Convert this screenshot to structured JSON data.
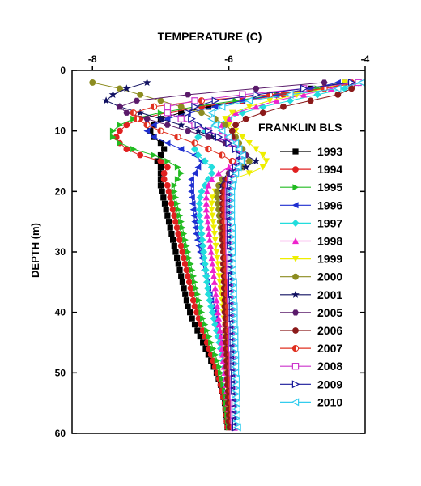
{
  "chart_data": {
    "type": "line",
    "title": "TEMPERATURE (C)",
    "xlabel": "TEMPERATURE (C)",
    "ylabel": "DEPTH (m)",
    "xlim": [
      -8.3,
      -4.0
    ],
    "ylim": [
      60,
      0
    ],
    "x_axis_position": "top",
    "y_inverted": true,
    "x_ticks": [
      "-8",
      "-6",
      "-4"
    ],
    "x_tick_values": [
      -8,
      -6,
      -4
    ],
    "y_ticks": [
      "0",
      "10",
      "20",
      "30",
      "40",
      "50",
      "60"
    ],
    "y_tick_values": [
      0,
      10,
      20,
      30,
      40,
      50,
      60
    ],
    "grid": false,
    "legend": {
      "title": "FRANKLIN BLS",
      "placement": "right-inside"
    },
    "depths": [
      2,
      3,
      4,
      5,
      6,
      7,
      8,
      9,
      10,
      11,
      12,
      13,
      14,
      15,
      16,
      17,
      18,
      19,
      20,
      21,
      22,
      23,
      24,
      25,
      26,
      27,
      28,
      29,
      30,
      31,
      32,
      33,
      34,
      35,
      36,
      37,
      38,
      39,
      40,
      41,
      42,
      43,
      44,
      45,
      46,
      47,
      48,
      49,
      50,
      51,
      52,
      53,
      54,
      55,
      56,
      57,
      58,
      59
    ],
    "series": [
      {
        "name": "1993",
        "color": "#000000",
        "marker": "square",
        "values": [
          -4.3,
          -4.8,
          -5.3,
          -5.8,
          -6.3,
          -6.7,
          -7.0,
          -7.1,
          -7.15,
          -7.1,
          -7.0,
          -6.95,
          -7.0,
          -7.05,
          -7.0,
          -7.0,
          -7.0,
          -7.0,
          -6.98,
          -6.96,
          -6.94,
          -6.92,
          -6.9,
          -6.88,
          -6.86,
          -6.84,
          -6.82,
          -6.8,
          -6.78,
          -6.76,
          -6.74,
          -6.72,
          -6.7,
          -6.68,
          -6.66,
          -6.64,
          -6.62,
          -6.6,
          -6.57,
          -6.54,
          -6.5,
          -6.46,
          -6.42,
          -6.38,
          -6.34,
          -6.3,
          -6.26,
          -6.22,
          -6.18,
          -6.15,
          -6.12,
          -6.1,
          -6.08,
          -6.06,
          -6.05,
          -6.04,
          -6.03,
          -6.02
        ]
      },
      {
        "name": "1994",
        "color": "#e02020",
        "marker": "circle",
        "values": [
          -4.2,
          -4.6,
          -5.2,
          -5.8,
          -6.4,
          -6.9,
          -7.3,
          -7.5,
          -7.6,
          -7.65,
          -7.6,
          -7.5,
          -7.3,
          -7.0,
          -6.9,
          -6.95,
          -6.95,
          -6.9,
          -6.88,
          -6.86,
          -6.84,
          -6.82,
          -6.8,
          -6.78,
          -6.76,
          -6.74,
          -6.72,
          -6.7,
          -6.68,
          -6.66,
          -6.64,
          -6.62,
          -6.6,
          -6.58,
          -6.56,
          -6.54,
          -6.52,
          -6.5,
          -6.47,
          -6.44,
          -6.41,
          -6.38,
          -6.35,
          -6.32,
          -6.29,
          -6.26,
          -6.23,
          -6.2,
          -6.17,
          -6.14,
          -6.12,
          -6.1,
          -6.08,
          -6.06,
          -6.05,
          -6.04,
          -6.03,
          -6.02
        ]
      },
      {
        "name": "1995",
        "color": "#22bb22",
        "marker": "triangle-right",
        "values": [
          -4.3,
          -4.7,
          -5.3,
          -5.9,
          -6.5,
          -7.0,
          -7.4,
          -7.6,
          -7.7,
          -7.7,
          -7.6,
          -7.4,
          -7.1,
          -6.9,
          -6.75,
          -6.7,
          -6.75,
          -6.8,
          -6.8,
          -6.78,
          -6.76,
          -6.74,
          -6.72,
          -6.7,
          -6.68,
          -6.66,
          -6.64,
          -6.62,
          -6.6,
          -6.58,
          -6.56,
          -6.54,
          -6.52,
          -6.5,
          -6.48,
          -6.46,
          -6.44,
          -6.42,
          -6.4,
          -6.38,
          -6.35,
          -6.32,
          -6.29,
          -6.26,
          -6.23,
          -6.2,
          -6.17,
          -6.14,
          -6.12,
          -6.1,
          -6.08,
          -6.06,
          -6.05,
          -6.04,
          -6.03,
          -6.02,
          -6.01,
          -6.0
        ]
      },
      {
        "name": "1996",
        "color": "#1f2fd0",
        "marker": "triangle-left",
        "values": [
          -4.4,
          -4.8,
          -5.3,
          -5.8,
          -6.2,
          -6.6,
          -6.9,
          -7.1,
          -7.2,
          -7.1,
          -6.9,
          -6.7,
          -6.5,
          -6.4,
          -6.45,
          -6.5,
          -6.55,
          -6.55,
          -6.55,
          -6.54,
          -6.53,
          -6.52,
          -6.51,
          -6.5,
          -6.49,
          -6.48,
          -6.46,
          -6.44,
          -6.42,
          -6.4,
          -6.38,
          -6.36,
          -6.34,
          -6.32,
          -6.3,
          -6.28,
          -6.26,
          -6.24,
          -6.22,
          -6.2,
          -6.18,
          -6.16,
          -6.14,
          -6.12,
          -6.1,
          -6.09,
          -6.08,
          -6.07,
          -6.06,
          -6.05,
          -6.04,
          -6.03,
          -6.02,
          -6.01,
          -6.0,
          -5.99,
          -5.98,
          -5.97
        ]
      },
      {
        "name": "1997",
        "color": "#22dddd",
        "marker": "diamond",
        "values": [
          -4.1,
          -4.3,
          -4.7,
          -5.1,
          -5.5,
          -5.8,
          -6.0,
          -6.2,
          -6.35,
          -6.45,
          -6.5,
          -6.5,
          -6.45,
          -6.35,
          -6.25,
          -6.25,
          -6.3,
          -6.35,
          -6.4,
          -6.42,
          -6.43,
          -6.43,
          -6.43,
          -6.42,
          -6.41,
          -6.4,
          -6.39,
          -6.38,
          -6.37,
          -6.36,
          -6.35,
          -6.34,
          -6.33,
          -6.32,
          -6.31,
          -6.3,
          -6.28,
          -6.26,
          -6.24,
          -6.22,
          -6.2,
          -6.18,
          -6.16,
          -6.14,
          -6.12,
          -6.1,
          -6.08,
          -6.06,
          -6.05,
          -6.04,
          -6.03,
          -6.02,
          -6.01,
          -6.0,
          -5.99,
          -5.98,
          -5.97,
          -5.96
        ]
      },
      {
        "name": "1998",
        "color": "#ee22cc",
        "marker": "triangle-up",
        "values": [
          -4.2,
          -4.5,
          -4.9,
          -5.3,
          -5.6,
          -5.9,
          -6.0,
          -6.1,
          -6.1,
          -6.05,
          -6.0,
          -5.9,
          -5.85,
          -5.9,
          -6.0,
          -6.15,
          -6.25,
          -6.3,
          -6.32,
          -6.33,
          -6.33,
          -6.33,
          -6.32,
          -6.31,
          -6.3,
          -6.29,
          -6.28,
          -6.27,
          -6.26,
          -6.25,
          -6.24,
          -6.23,
          -6.22,
          -6.21,
          -6.2,
          -6.19,
          -6.18,
          -6.17,
          -6.16,
          -6.15,
          -6.14,
          -6.13,
          -6.12,
          -6.11,
          -6.1,
          -6.09,
          -6.08,
          -6.07,
          -6.06,
          -6.05,
          -6.04,
          -6.03,
          -6.02,
          -6.01,
          -6.0,
          -5.99,
          -5.98,
          -5.97
        ]
      },
      {
        "name": "1999",
        "color": "#eeee00",
        "marker": "triangle-down",
        "values": [
          -4.3,
          -4.6,
          -5.0,
          -5.4,
          -5.7,
          -5.95,
          -6.05,
          -6.0,
          -5.9,
          -5.8,
          -5.7,
          -5.6,
          -5.5,
          -5.45,
          -5.5,
          -5.7,
          -5.95,
          -6.1,
          -6.2,
          -6.24,
          -6.25,
          -6.25,
          -6.24,
          -6.23,
          -6.22,
          -6.21,
          -6.2,
          -6.19,
          -6.18,
          -6.17,
          -6.16,
          -6.15,
          -6.14,
          -6.13,
          -6.12,
          -6.11,
          -6.1,
          -6.09,
          -6.08,
          -6.07,
          -6.06,
          -6.05,
          -6.05,
          -6.04,
          -6.04,
          -6.03,
          -6.03,
          -6.02,
          -6.02,
          -6.01,
          -6.01,
          -6.0,
          -6.0,
          -5.99,
          -5.99,
          -5.98,
          -5.98,
          -5.97
        ]
      },
      {
        "name": "2000",
        "color": "#8c8c20",
        "marker": "circle",
        "values": [
          -8.0,
          -7.6,
          -7.3,
          -7.0,
          -6.7,
          -6.4,
          -6.2,
          -6.05,
          -5.95,
          -5.9,
          -5.85,
          -5.8,
          -5.75,
          -5.7,
          -5.8,
          -6.0,
          -6.1,
          -6.15,
          -6.17,
          -6.17,
          -6.16,
          -6.15,
          -6.14,
          -6.13,
          -6.12,
          -6.11,
          -6.1,
          -6.09,
          -6.08,
          -6.07,
          -6.06,
          -6.05,
          -6.05,
          -6.04,
          -6.04,
          -6.03,
          -6.03,
          -6.02,
          -6.02,
          -6.01,
          -6.01,
          -6.0,
          -6.0,
          -6.0,
          -5.99,
          -5.99,
          -5.99,
          -5.98,
          -5.98,
          -5.98,
          -5.97,
          -5.97,
          -5.97,
          -5.96,
          -5.96,
          -5.96,
          -5.95,
          -5.95
        ]
      },
      {
        "name": "2001",
        "color": "#101060",
        "marker": "star",
        "values": [
          -7.2,
          -7.5,
          -7.7,
          -7.8,
          -7.6,
          -7.3,
          -7.0,
          -6.7,
          -6.45,
          -6.25,
          -6.05,
          -5.9,
          -5.75,
          -5.6,
          -5.75,
          -5.95,
          -6.05,
          -6.1,
          -6.1,
          -6.1,
          -6.09,
          -6.08,
          -6.07,
          -6.06,
          -6.05,
          -6.05,
          -6.04,
          -6.04,
          -6.03,
          -6.03,
          -6.02,
          -6.02,
          -6.01,
          -6.01,
          -6.0,
          -6.0,
          -6.0,
          -5.99,
          -5.99,
          -5.99,
          -5.98,
          -5.98,
          -5.98,
          -5.97,
          -5.97,
          -5.97,
          -5.96,
          -5.96,
          -5.96,
          -5.95,
          -5.95,
          -5.95,
          -5.94,
          -5.94,
          -5.94,
          -5.93,
          -5.93,
          -5.93
        ]
      },
      {
        "name": "2005",
        "color": "#5a1a6a",
        "marker": "hexagon",
        "values": [
          -4.6,
          -5.6,
          -6.6,
          -7.35,
          -7.6,
          -7.5,
          -7.2,
          -6.9,
          -6.6,
          -6.3,
          -6.05,
          -5.85,
          -5.75,
          -5.8,
          -5.9,
          -6.0,
          -6.05,
          -6.07,
          -6.07,
          -6.07,
          -6.06,
          -6.06,
          -6.05,
          -6.05,
          -6.04,
          -6.04,
          -6.03,
          -6.03,
          -6.02,
          -6.02,
          -6.01,
          -6.01,
          -6.01,
          -6.0,
          -6.0,
          -6.0,
          -5.99,
          -5.99,
          -5.99,
          -5.98,
          -5.98,
          -5.98,
          -5.98,
          -5.97,
          -5.97,
          -5.97,
          -5.97,
          -5.96,
          -5.96,
          -5.96,
          -5.96,
          -5.95,
          -5.95,
          -5.95,
          -5.95,
          -5.94,
          -5.94,
          -5.94
        ]
      },
      {
        "name": "2006",
        "color": "#8b1a1a",
        "marker": "circle",
        "values": [
          -4.1,
          -4.2,
          -4.4,
          -4.8,
          -5.2,
          -5.5,
          -5.75,
          -5.9,
          -5.95,
          -5.95,
          -5.9,
          -5.85,
          -5.8,
          -5.8,
          -5.85,
          -5.95,
          -6.02,
          -6.06,
          -6.08,
          -6.09,
          -6.09,
          -6.09,
          -6.09,
          -6.09,
          -6.09,
          -6.09,
          -6.09,
          -6.09,
          -6.08,
          -6.08,
          -6.08,
          -6.08,
          -6.07,
          -6.07,
          -6.07,
          -6.07,
          -6.06,
          -6.06,
          -6.06,
          -6.05,
          -6.05,
          -6.05,
          -6.04,
          -6.04,
          -6.04,
          -6.03,
          -6.03,
          -6.03,
          -6.02,
          -6.02,
          -6.02,
          -6.01,
          -6.01,
          -6.01,
          -6.0,
          -6.0,
          -6.0,
          -5.99
        ]
      },
      {
        "name": "2007",
        "color": "#e03020",
        "marker": "half-circle",
        "values": [
          -4.1,
          -4.6,
          -5.4,
          -6.4,
          -7.1,
          -7.4,
          -7.35,
          -7.2,
          -7.0,
          -6.75,
          -6.5,
          -6.3,
          -6.1,
          -5.95,
          -5.9,
          -5.95,
          -6.0,
          -6.03,
          -6.05,
          -6.06,
          -6.06,
          -6.06,
          -6.06,
          -6.06,
          -6.05,
          -6.05,
          -6.05,
          -6.04,
          -6.04,
          -6.04,
          -6.03,
          -6.03,
          -6.03,
          -6.02,
          -6.02,
          -6.02,
          -6.01,
          -6.01,
          -6.01,
          -6.0,
          -6.0,
          -6.0,
          -5.99,
          -5.99,
          -5.99,
          -5.98,
          -5.98,
          -5.98,
          -5.97,
          -5.97,
          -5.97,
          -5.96,
          -5.96,
          -5.96,
          -5.95,
          -5.95,
          -5.95,
          -5.94
        ]
      },
      {
        "name": "2008",
        "color": "#cc33cc",
        "marker": "open-square",
        "values": [
          -4.1,
          -4.9,
          -5.8,
          -6.5,
          -6.9,
          -6.9,
          -6.7,
          -6.5,
          -6.3,
          -6.1,
          -5.95,
          -5.85,
          -5.8,
          -5.85,
          -5.9,
          -5.95,
          -5.98,
          -6.0,
          -6.01,
          -6.01,
          -6.01,
          -6.01,
          -6.01,
          -6.0,
          -6.0,
          -6.0,
          -6.0,
          -6.0,
          -6.0,
          -5.99,
          -5.99,
          -5.99,
          -5.99,
          -5.98,
          -5.98,
          -5.98,
          -5.98,
          -5.97,
          -5.97,
          -5.97,
          -5.97,
          -5.96,
          -5.96,
          -5.96,
          -5.96,
          -5.95,
          -5.95,
          -5.95,
          -5.95,
          -5.94,
          -5.94,
          -5.94,
          -5.94,
          -5.93,
          -5.93,
          -5.93,
          -5.93,
          -5.92
        ]
      },
      {
        "name": "2009",
        "color": "#1a1a9a",
        "marker": "open-triangle-right",
        "values": [
          -4.2,
          -4.9,
          -5.6,
          -6.2,
          -6.5,
          -6.6,
          -6.55,
          -6.45,
          -6.3,
          -6.15,
          -6.0,
          -5.9,
          -5.85,
          -5.85,
          -5.9,
          -5.95,
          -5.97,
          -5.98,
          -5.99,
          -5.99,
          -5.99,
          -5.99,
          -5.99,
          -5.98,
          -5.98,
          -5.98,
          -5.98,
          -5.98,
          -5.97,
          -5.97,
          -5.97,
          -5.97,
          -5.96,
          -5.96,
          -5.96,
          -5.96,
          -5.95,
          -5.95,
          -5.95,
          -5.95,
          -5.94,
          -5.94,
          -5.94,
          -5.94,
          -5.93,
          -5.93,
          -5.93,
          -5.93,
          -5.92,
          -5.92,
          -5.92,
          -5.92,
          -5.91,
          -5.91,
          -5.91,
          -5.91,
          -5.9,
          -5.9
        ]
      },
      {
        "name": "2010",
        "color": "#33ccee",
        "marker": "open-triangle-left",
        "values": [
          -4.05,
          -4.4,
          -5.1,
          -5.7,
          -6.1,
          -6.25,
          -6.25,
          -6.2,
          -6.1,
          -6.0,
          -5.9,
          -5.85,
          -5.8,
          -5.82,
          -5.86,
          -5.9,
          -5.93,
          -5.95,
          -5.96,
          -5.96,
          -5.96,
          -5.96,
          -5.96,
          -5.96,
          -5.95,
          -5.95,
          -5.95,
          -5.95,
          -5.95,
          -5.94,
          -5.94,
          -5.94,
          -5.94,
          -5.93,
          -5.93,
          -5.93,
          -5.93,
          -5.92,
          -5.92,
          -5.92,
          -5.92,
          -5.91,
          -5.91,
          -5.91,
          -5.91,
          -5.9,
          -5.9,
          -5.9,
          -5.9,
          -5.89,
          -5.89,
          -5.89,
          -5.89,
          -5.88,
          -5.88,
          -5.88,
          -5.88,
          -5.87
        ]
      }
    ]
  }
}
